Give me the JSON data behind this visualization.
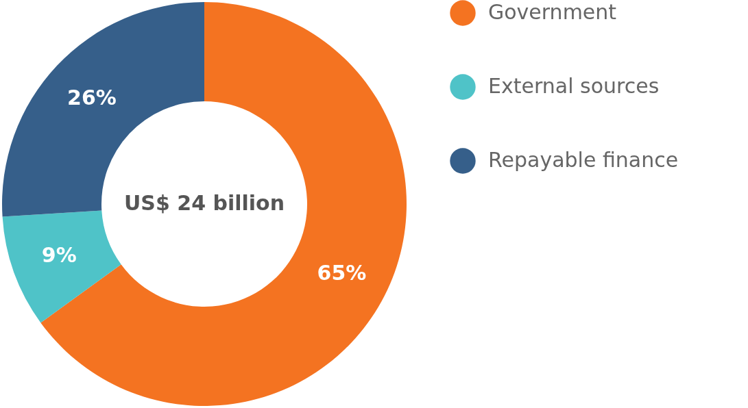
{
  "chart_data": {
    "type": "donut",
    "categories": [
      "Government",
      "External sources",
      "Repayable finance"
    ],
    "values": [
      65,
      9,
      26
    ],
    "colors": [
      "#f47321",
      "#4fc3c8",
      "#365f8a"
    ],
    "value_labels": [
      "65%",
      "9%",
      "26%"
    ],
    "annotations": [
      "US$ 24 billion"
    ],
    "legend": "right"
  }
}
